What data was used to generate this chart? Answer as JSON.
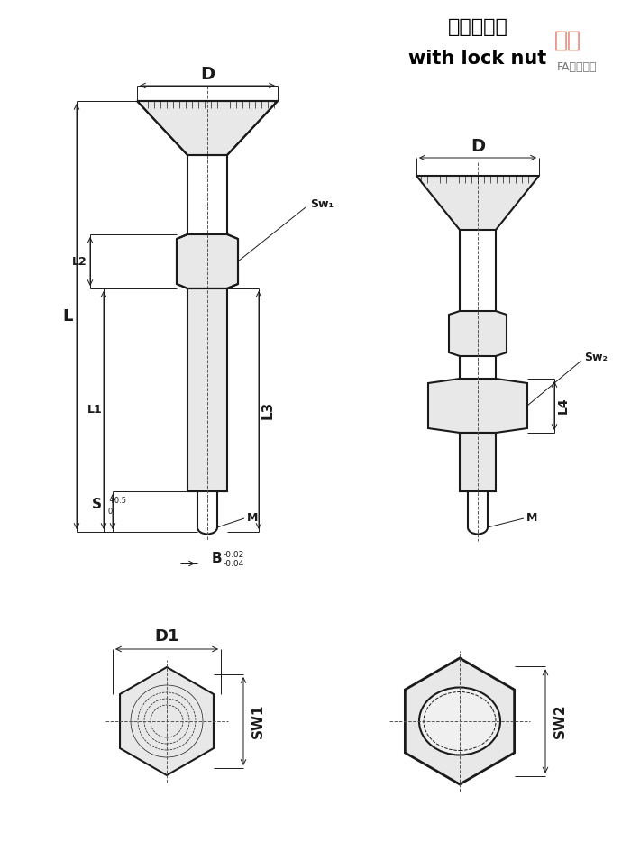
{
  "bg_color": "#ffffff",
  "line_color": "#1a1a1a",
  "fill_color": "#e8e8e8",
  "dim_color": "#1a1a1a",
  "centerline_color": "#555555",
  "title_cn": "带锁紧螺帽",
  "title_en": "with lock nut",
  "watermark_cn": "正辰",
  "watermark_en": "FA配件工厂",
  "label_D": "D",
  "label_L": "L",
  "label_L1": "L1",
  "label_L2": "L2",
  "label_L3": "L3",
  "label_L4": "L4",
  "label_Sw1": "Sw₁",
  "label_Sw2": "Sw₂",
  "label_SW1": "SW1",
  "label_SW2": "SW2",
  "label_D1": "D1",
  "label_M": "M",
  "label_S": "S",
  "label_S_tol": "+0.5\n0",
  "label_B": "B",
  "label_B_tol": "-0.02\n-0.04"
}
